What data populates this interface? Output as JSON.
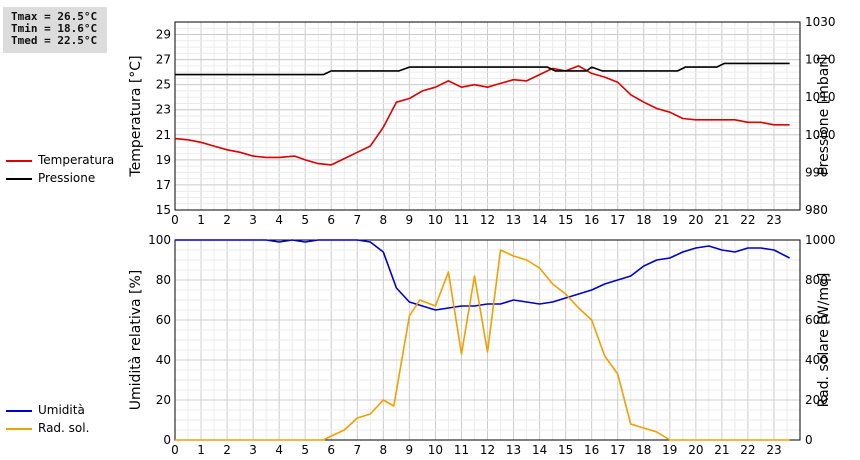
{
  "stats": {
    "tmax": "Tmax = 26.5°C",
    "tmin": "Tmin = 18.6°C",
    "tmed": "Tmed = 22.5°C"
  },
  "legend_top": [
    {
      "label": "Temperatura",
      "color": "#dd0000"
    },
    {
      "label": "Pressione",
      "color": "#000000"
    }
  ],
  "legend_bottom": [
    {
      "label": "Umidità",
      "color": "#0000cc"
    },
    {
      "label": "Rad. sol.",
      "color": "#f0a000"
    }
  ],
  "chart_data": [
    {
      "type": "line",
      "xlabel": "",
      "xticks": [
        "0",
        "1",
        "2",
        "3",
        "4",
        "5",
        "6",
        "7",
        "8",
        "9",
        "10",
        "11",
        "12",
        "13",
        "14",
        "15",
        "16",
        "17",
        "18",
        "19",
        "20",
        "21",
        "22",
        "23"
      ],
      "xlim": [
        0,
        24
      ],
      "ylabel": "Temperatura [°C]",
      "ylim": [
        15,
        30
      ],
      "yticks": [
        "15",
        "17",
        "19",
        "21",
        "23",
        "25",
        "27",
        "29"
      ],
      "y2label": "Pressione [mbar]",
      "y2lim": [
        980,
        1030
      ],
      "y2ticks": [
        "980",
        "990",
        "1000",
        "1010",
        "1020",
        "1030"
      ],
      "grid": true,
      "series": [
        {
          "name": "Temperatura",
          "axis": "left",
          "color": "#dd0000",
          "points": [
            [
              0,
              20.7
            ],
            [
              0.5,
              20.6
            ],
            [
              1,
              20.4
            ],
            [
              1.5,
              20.1
            ],
            [
              2,
              19.8
            ],
            [
              2.5,
              19.6
            ],
            [
              3,
              19.3
            ],
            [
              3.5,
              19.2
            ],
            [
              4,
              19.2
            ],
            [
              4.6,
              19.3
            ],
            [
              5,
              19.0
            ],
            [
              5.5,
              18.7
            ],
            [
              6,
              18.6
            ],
            [
              6.5,
              19.1
            ],
            [
              7,
              19.6
            ],
            [
              7.5,
              20.1
            ],
            [
              8,
              21.6
            ],
            [
              8.5,
              23.6
            ],
            [
              9,
              23.9
            ],
            [
              9.5,
              24.5
            ],
            [
              10,
              24.8
            ],
            [
              10.5,
              25.3
            ],
            [
              11,
              24.8
            ],
            [
              11.5,
              25.0
            ],
            [
              12,
              24.8
            ],
            [
              12.5,
              25.1
            ],
            [
              13,
              25.4
            ],
            [
              13.5,
              25.3
            ],
            [
              14,
              25.8
            ],
            [
              14.5,
              26.3
            ],
            [
              15,
              26.1
            ],
            [
              15.5,
              26.5
            ],
            [
              16,
              25.9
            ],
            [
              16.5,
              25.6
            ],
            [
              17,
              25.2
            ],
            [
              17.5,
              24.2
            ],
            [
              18,
              23.6
            ],
            [
              18.5,
              23.1
            ],
            [
              19,
              22.8
            ],
            [
              19.5,
              22.3
            ],
            [
              20,
              22.2
            ],
            [
              20.5,
              22.2
            ],
            [
              21,
              22.2
            ],
            [
              21.5,
              22.2
            ],
            [
              22,
              22.0
            ],
            [
              22.5,
              22.0
            ],
            [
              23,
              21.8
            ],
            [
              23.6,
              21.8
            ]
          ]
        },
        {
          "name": "Pressione",
          "axis": "right",
          "color": "#000000",
          "points": [
            [
              0,
              1016
            ],
            [
              5.7,
              1016
            ],
            [
              6,
              1017
            ],
            [
              8.6,
              1017
            ],
            [
              9,
              1018
            ],
            [
              14.3,
              1018
            ],
            [
              14.6,
              1017
            ],
            [
              15.8,
              1017
            ],
            [
              16,
              1018
            ],
            [
              16.4,
              1017
            ],
            [
              19.3,
              1017
            ],
            [
              19.6,
              1018
            ],
            [
              20.8,
              1018
            ],
            [
              21.1,
              1019
            ],
            [
              23.6,
              1019
            ]
          ]
        }
      ]
    },
    {
      "type": "line",
      "xlabel": "",
      "xticks": [
        "0",
        "1",
        "2",
        "3",
        "4",
        "5",
        "6",
        "7",
        "8",
        "9",
        "10",
        "11",
        "12",
        "13",
        "14",
        "15",
        "16",
        "17",
        "18",
        "19",
        "20",
        "21",
        "22",
        "23"
      ],
      "xlim": [
        0,
        24
      ],
      "ylabel": "Umidità relativa [%]",
      "ylim": [
        0,
        100
      ],
      "yticks": [
        "0",
        "20",
        "40",
        "60",
        "80",
        "100"
      ],
      "y2label": "Rad. solare [W/mq]",
      "y2lim": [
        0,
        1000
      ],
      "y2ticks": [
        "0",
        "200",
        "400",
        "600",
        "800",
        "1000"
      ],
      "grid": true,
      "series": [
        {
          "name": "Umidità",
          "axis": "left",
          "color": "#0000cc",
          "points": [
            [
              0,
              100
            ],
            [
              3.5,
              100
            ],
            [
              4,
              99
            ],
            [
              4.5,
              100
            ],
            [
              5,
              99
            ],
            [
              5.5,
              100
            ],
            [
              7,
              100
            ],
            [
              7.5,
              99
            ],
            [
              8,
              94
            ],
            [
              8.5,
              76
            ],
            [
              9,
              69
            ],
            [
              9.5,
              67
            ],
            [
              10,
              65
            ],
            [
              10.5,
              66
            ],
            [
              11,
              67
            ],
            [
              11.5,
              67
            ],
            [
              12,
              68
            ],
            [
              12.5,
              68
            ],
            [
              13,
              70
            ],
            [
              13.5,
              69
            ],
            [
              14,
              68
            ],
            [
              14.5,
              69
            ],
            [
              15,
              71
            ],
            [
              15.5,
              73
            ],
            [
              16,
              75
            ],
            [
              16.5,
              78
            ],
            [
              17,
              80
            ],
            [
              17.5,
              82
            ],
            [
              18,
              87
            ],
            [
              18.5,
              90
            ],
            [
              19,
              91
            ],
            [
              19.5,
              94
            ],
            [
              20,
              96
            ],
            [
              20.5,
              97
            ],
            [
              21,
              95
            ],
            [
              21.5,
              94
            ],
            [
              22,
              96
            ],
            [
              22.5,
              96
            ],
            [
              23,
              95
            ],
            [
              23.6,
              91
            ]
          ]
        },
        {
          "name": "Rad. sol.",
          "axis": "right",
          "color": "#f0a000",
          "points": [
            [
              0,
              0
            ],
            [
              5.7,
              0
            ],
            [
              6,
              20
            ],
            [
              6.5,
              50
            ],
            [
              7,
              110
            ],
            [
              7.5,
              130
            ],
            [
              8,
              200
            ],
            [
              8.4,
              170
            ],
            [
              9,
              620
            ],
            [
              9.4,
              700
            ],
            [
              10,
              670
            ],
            [
              10.5,
              840
            ],
            [
              11,
              430
            ],
            [
              11.5,
              820
            ],
            [
              12,
              440
            ],
            [
              12.5,
              950
            ],
            [
              13,
              920
            ],
            [
              13.5,
              900
            ],
            [
              14,
              860
            ],
            [
              14.5,
              780
            ],
            [
              15,
              730
            ],
            [
              15.5,
              660
            ],
            [
              16,
              600
            ],
            [
              16.5,
              420
            ],
            [
              17,
              330
            ],
            [
              17.5,
              80
            ],
            [
              18,
              60
            ],
            [
              18.5,
              40
            ],
            [
              19,
              0
            ],
            [
              23.6,
              0
            ]
          ]
        }
      ]
    }
  ]
}
